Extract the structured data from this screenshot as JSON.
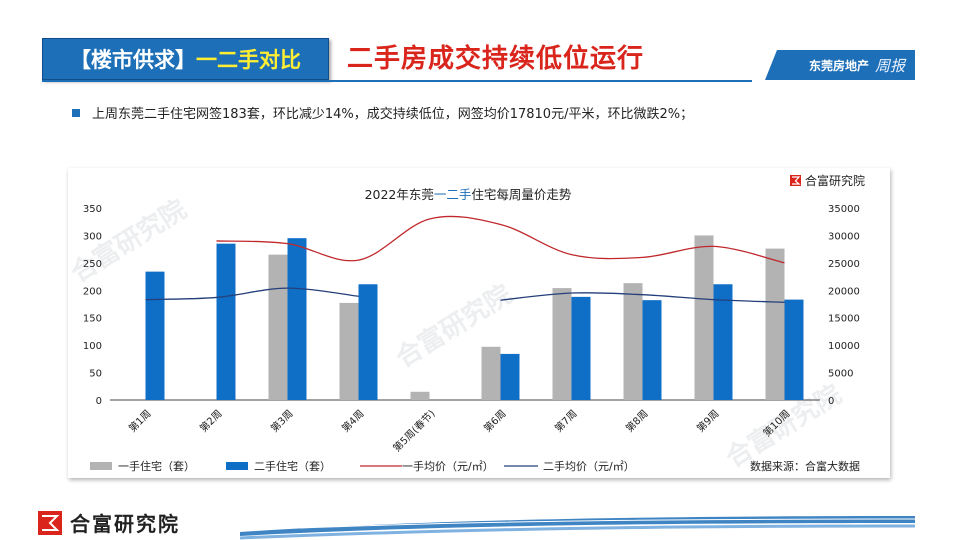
{
  "header": {
    "tag_part_a": "【楼市供求】",
    "tag_part_b": "一二手对比",
    "title": "二手房成交持续低位运行",
    "brand_main": "东莞房地产",
    "brand_script": "周报"
  },
  "summary": {
    "bullet": "上周东莞二手住宅网签183套，环比减少14%，成交持续低位，网签均价17810元/平米，环比微跌2%；"
  },
  "chart_logo": "合富研究院",
  "watermark": "合富研究院",
  "footer": {
    "logo_text": "合富研究院"
  },
  "colors": {
    "accent_blue": "#1d6fb8",
    "title_red": "#d9251c",
    "bar_gray": "#b3b3b3",
    "bar_blue": "#0f6fc6",
    "line_red": "#c0282c",
    "line_navy": "#243f7a"
  },
  "chart_data": {
    "type": "bar",
    "title_parts": [
      "2022年东莞",
      "一二手",
      "住宅每周量价走势"
    ],
    "categories": [
      "第1周",
      "第2周",
      "第3周",
      "第4周",
      "第5周(春节)",
      "第6周",
      "第7周",
      "第8周",
      "第9周",
      "第10周"
    ],
    "ylim_left": [
      0,
      350
    ],
    "yticks_left": [
      0,
      50,
      100,
      150,
      200,
      250,
      300,
      350
    ],
    "ylim_right": [
      0,
      35000
    ],
    "yticks_right": [
      0,
      5000,
      10000,
      15000,
      20000,
      25000,
      30000,
      35000
    ],
    "series": [
      {
        "name": "一手住宅（套）",
        "kind": "bar",
        "axis": "left",
        "values": [
          null,
          null,
          265,
          177,
          15,
          97,
          204,
          213,
          300,
          276
        ]
      },
      {
        "name": "二手住宅（套）",
        "kind": "bar",
        "axis": "left",
        "values": [
          234,
          285,
          295,
          211,
          null,
          84,
          188,
          182,
          211,
          183
        ]
      },
      {
        "name": "一手均价（元/㎡）",
        "kind": "line",
        "axis": "right",
        "values": [
          null,
          29000,
          28500,
          25500,
          33000,
          32000,
          26500,
          26000,
          28000,
          25000
        ]
      },
      {
        "name": "二手均价（元/㎡）",
        "kind": "line",
        "axis": "right",
        "values": [
          18300,
          18700,
          20400,
          18900,
          null,
          18200,
          19500,
          19200,
          18300,
          17810
        ]
      }
    ],
    "source_note": "数据来源：合富大数据",
    "grid": false,
    "legend_position": "bottom"
  }
}
